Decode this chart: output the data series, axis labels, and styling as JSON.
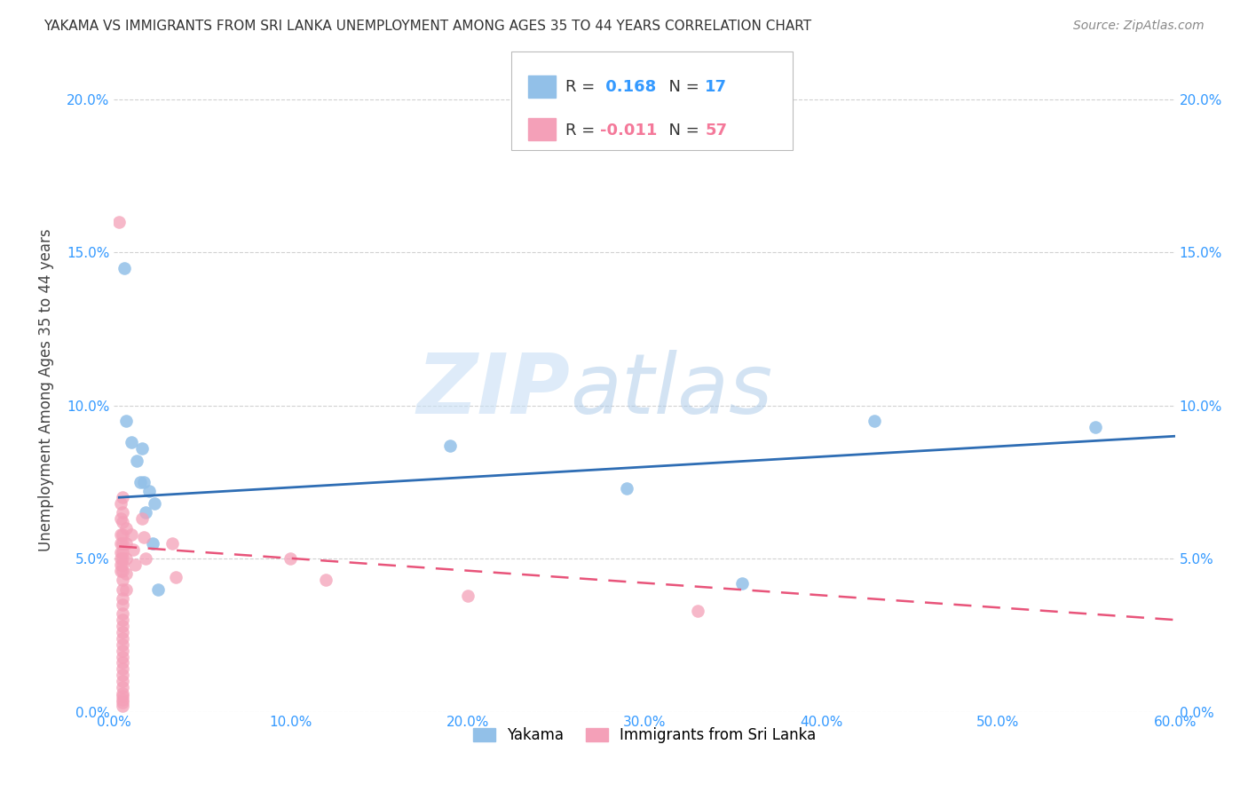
{
  "title": "YAKAMA VS IMMIGRANTS FROM SRI LANKA UNEMPLOYMENT AMONG AGES 35 TO 44 YEARS CORRELATION CHART",
  "source": "Source: ZipAtlas.com",
  "ylabel_label": "Unemployment Among Ages 35 to 44 years",
  "xlim": [
    0,
    0.6
  ],
  "ylim": [
    0,
    0.21
  ],
  "x_ticks": [
    0.0,
    0.1,
    0.2,
    0.3,
    0.4,
    0.5,
    0.6
  ],
  "x_tick_labels": [
    "0.0%",
    "10.0%",
    "20.0%",
    "30.0%",
    "40.0%",
    "50.0%",
    "60.0%"
  ],
  "y_ticks": [
    0.0,
    0.05,
    0.1,
    0.15,
    0.2
  ],
  "y_tick_labels": [
    "0.0%",
    "5.0%",
    "10.0%",
    "15.0%",
    "20.0%"
  ],
  "yakama_color": "#92C0E8",
  "srilanka_color": "#F4A0B8",
  "trendline_yakama_color": "#2E6DB4",
  "trendline_srilanka_color": "#E8547A",
  "R_yakama": 0.168,
  "N_yakama": 17,
  "R_srilanka": -0.011,
  "N_srilanka": 57,
  "watermark_zip": "ZIP",
  "watermark_atlas": "atlas",
  "yakama_x": [
    0.006,
    0.007,
    0.01,
    0.013,
    0.015,
    0.018,
    0.02,
    0.022,
    0.023,
    0.025,
    0.016,
    0.017,
    0.19,
    0.29,
    0.355,
    0.43,
    0.555
  ],
  "yakama_y": [
    0.145,
    0.095,
    0.088,
    0.082,
    0.075,
    0.065,
    0.072,
    0.055,
    0.068,
    0.04,
    0.086,
    0.075,
    0.087,
    0.073,
    0.042,
    0.095,
    0.093
  ],
  "srilanka_x": [
    0.003,
    0.004,
    0.004,
    0.004,
    0.004,
    0.004,
    0.004,
    0.004,
    0.004,
    0.005,
    0.005,
    0.005,
    0.005,
    0.005,
    0.005,
    0.005,
    0.005,
    0.005,
    0.005,
    0.005,
    0.005,
    0.005,
    0.005,
    0.005,
    0.005,
    0.005,
    0.005,
    0.005,
    0.005,
    0.005,
    0.005,
    0.005,
    0.005,
    0.005,
    0.005,
    0.005,
    0.005,
    0.005,
    0.005,
    0.005,
    0.007,
    0.007,
    0.007,
    0.007,
    0.007,
    0.01,
    0.011,
    0.012,
    0.016,
    0.017,
    0.018,
    0.033,
    0.035,
    0.1,
    0.12,
    0.2,
    0.33
  ],
  "srilanka_y": [
    0.16,
    0.068,
    0.063,
    0.058,
    0.055,
    0.052,
    0.05,
    0.048,
    0.046,
    0.07,
    0.065,
    0.062,
    0.058,
    0.055,
    0.052,
    0.05,
    0.048,
    0.046,
    0.043,
    0.04,
    0.037,
    0.035,
    0.032,
    0.03,
    0.028,
    0.026,
    0.024,
    0.022,
    0.02,
    0.018,
    0.016,
    0.014,
    0.012,
    0.01,
    0.008,
    0.006,
    0.005,
    0.004,
    0.003,
    0.002,
    0.06,
    0.055,
    0.05,
    0.045,
    0.04,
    0.058,
    0.053,
    0.048,
    0.063,
    0.057,
    0.05,
    0.055,
    0.044,
    0.05,
    0.043,
    0.038,
    0.033
  ],
  "trendline_yakama_x0": 0.003,
  "trendline_yakama_x1": 0.6,
  "trendline_yakama_y0": 0.07,
  "trendline_yakama_y1": 0.09,
  "trendline_srilanka_x0": 0.003,
  "trendline_srilanka_x1": 0.6,
  "trendline_srilanka_y0": 0.054,
  "trendline_srilanka_y1": 0.03
}
